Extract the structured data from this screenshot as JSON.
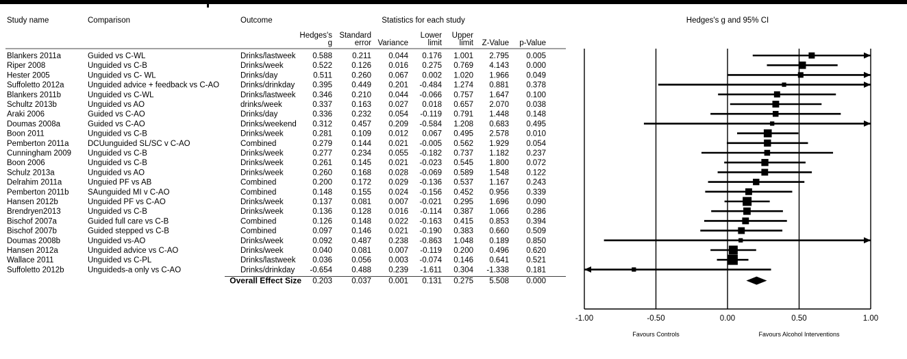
{
  "chart_data": {
    "type": "forest",
    "title": "Hedges's g and 95% CI",
    "group_header": "Statistics for each study",
    "columns": {
      "study": "Study name",
      "comparison": "Comparison",
      "outcome": "Outcome",
      "g": [
        "Hedges's",
        "g"
      ],
      "se": [
        "Standard",
        "error"
      ],
      "var": [
        "",
        "Variance"
      ],
      "lower": [
        "Lower",
        "limit"
      ],
      "upper": [
        "Upper",
        "limit"
      ],
      "z": [
        "",
        "Z-Value"
      ],
      "p": [
        "",
        "p-Value"
      ]
    },
    "studies": [
      {
        "study": "Blankers 2011a",
        "comparison": "Guided vs C-WL",
        "outcome": "Drinks/lastweek",
        "g": "0.588",
        "se": "0.211",
        "var": "0.044",
        "lower": "0.176",
        "upper": "1.001",
        "z": "2.795",
        "p": "0.005",
        "weight": 0.55
      },
      {
        "study": "Riper 2008",
        "comparison": "Unguided vs C-B",
        "outcome": "Drinks/week",
        "g": "0.522",
        "se": "0.126",
        "var": "0.016",
        "lower": "0.275",
        "upper": "0.769",
        "z": "4.143",
        "p": "0.000",
        "weight": 0.75
      },
      {
        "study": "Hester 2005",
        "comparison": "Unguided vs C- WL",
        "outcome": "Drinks/day",
        "g": "0.511",
        "se": "0.260",
        "var": "0.067",
        "lower": "0.002",
        "upper": "1.020",
        "z": "1.966",
        "p": "0.049",
        "weight": 0.45
      },
      {
        "study": "Suffoletto 2012a",
        "comparison": "Unguided advice + feedback vs C-AO",
        "outcome": "Drinks/drinkday",
        "g": "0.395",
        "se": "0.449",
        "var": "0.201",
        "lower": "-0.484",
        "upper": "1.274",
        "z": "0.881",
        "p": "0.378",
        "weight": 0.25
      },
      {
        "study": "Blankers 2011b",
        "comparison": "Unguided vs C-WL",
        "outcome": "Drinks/lastweek",
        "g": "0.346",
        "se": "0.210",
        "var": "0.044",
        "lower": "-0.066",
        "upper": "0.757",
        "z": "1.647",
        "p": "0.100",
        "weight": 0.55
      },
      {
        "study": "Schultz 2013b",
        "comparison": "Unguided vs AO",
        "outcome": "drinks/week",
        "g": "0.337",
        "se": "0.163",
        "var": "0.027",
        "lower": "0.018",
        "upper": "0.657",
        "z": "2.070",
        "p": "0.038",
        "weight": 0.65
      },
      {
        "study": "Araki 2006",
        "comparison": "Guided vs C-AO",
        "outcome": "Drinks/day",
        "g": "0.336",
        "se": "0.232",
        "var": "0.054",
        "lower": "-0.119",
        "upper": "0.791",
        "z": "1.448",
        "p": "0.148",
        "weight": 0.5
      },
      {
        "study": "Doumas 2008a",
        "comparison": "Guided vs C-AO",
        "outcome": "Drinks/weekend",
        "g": "0.312",
        "se": "0.457",
        "var": "0.209",
        "lower": "-0.584",
        "upper": "1.208",
        "z": "0.683",
        "p": "0.495",
        "weight": 0.25
      },
      {
        "study": "Boon 2011",
        "comparison": "Unguided vs C-B",
        "outcome": "Drinks/week",
        "g": "0.281",
        "se": "0.109",
        "var": "0.012",
        "lower": "0.067",
        "upper": "0.495",
        "z": "2.578",
        "p": "0.010",
        "weight": 0.85
      },
      {
        "study": "Pemberton 2011a",
        "comparison": "DCUunguided SL/SC v C-AO",
        "outcome": "Combined",
        "g": "0.279",
        "se": "0.144",
        "var": "0.021",
        "lower": "-0.005",
        "upper": "0.562",
        "z": "1.929",
        "p": "0.054",
        "weight": 0.7
      },
      {
        "study": "Cunningham 2009",
        "comparison": "Unguided vs C-B",
        "outcome": "Drinks/week",
        "g": "0.277",
        "se": "0.234",
        "var": "0.055",
        "lower": "-0.182",
        "upper": "0.737",
        "z": "1.182",
        "p": "0.237",
        "weight": 0.5
      },
      {
        "study": "Boon 2006",
        "comparison": "Unguided vs C-B",
        "outcome": "Drinks/week",
        "g": "0.261",
        "se": "0.145",
        "var": "0.021",
        "lower": "-0.023",
        "upper": "0.545",
        "z": "1.800",
        "p": "0.072",
        "weight": 0.7
      },
      {
        "study": "Schulz 2013a",
        "comparison": "Unguided vs AO",
        "outcome": "Drinks/week",
        "g": "0.260",
        "se": "0.168",
        "var": "0.028",
        "lower": "-0.069",
        "upper": "0.589",
        "z": "1.548",
        "p": "0.122",
        "weight": 0.65
      },
      {
        "study": "Delrahim 2011a",
        "comparison": "Unguied PF vs AB",
        "outcome": "Combined",
        "g": "0.200",
        "se": "0.172",
        "var": "0.029",
        "lower": "-0.136",
        "upper": "0.537",
        "z": "1.167",
        "p": "0.243",
        "weight": 0.6
      },
      {
        "study": "Pemberton 2011b",
        "comparison": "SAunguided MI v C-AO",
        "outcome": "Combined",
        "g": "0.148",
        "se": "0.155",
        "var": "0.024",
        "lower": "-0.156",
        "upper": "0.452",
        "z": "0.956",
        "p": "0.339",
        "weight": 0.65
      },
      {
        "study": "Hansen 2012b",
        "comparison": "Unguided PF vs C-AO",
        "outcome": "Drinks/week",
        "g": "0.137",
        "se": "0.081",
        "var": "0.007",
        "lower": "-0.021",
        "upper": "0.295",
        "z": "1.696",
        "p": "0.090",
        "weight": 1.0
      },
      {
        "study": "Brendryen2013",
        "comparison": "Unguided vs C-B",
        "outcome": "Drinks/week",
        "g": "0.136",
        "se": "0.128",
        "var": "0.016",
        "lower": "-0.114",
        "upper": "0.387",
        "z": "1.066",
        "p": "0.286",
        "weight": 0.75
      },
      {
        "study": "Bischof 2007a",
        "comparison": "Guided full care vs C-B",
        "outcome": "Combined",
        "g": "0.126",
        "se": "0.148",
        "var": "0.022",
        "lower": "-0.163",
        "upper": "0.415",
        "z": "0.853",
        "p": "0.394",
        "weight": 0.65
      },
      {
        "study": "Bischof 2007b",
        "comparison": "Guided stepped vs C-B",
        "outcome": "Combined",
        "g": "0.097",
        "se": "0.146",
        "var": "0.021",
        "lower": "-0.190",
        "upper": "0.383",
        "z": "0.660",
        "p": "0.509",
        "weight": 0.65
      },
      {
        "study": "Doumas 2008b",
        "comparison": "Unguided vs-AO",
        "outcome": "Drinks/week",
        "g": "0.092",
        "se": "0.487",
        "var": "0.238",
        "lower": "-0.863",
        "upper": "1.048",
        "z": "0.189",
        "p": "0.850",
        "weight": 0.25
      },
      {
        "study": "Hansen 2012a",
        "comparison": "Unguided advice vs C-AO",
        "outcome": "Drinks/week",
        "g": "0.040",
        "se": "0.081",
        "var": "0.007",
        "lower": "-0.119",
        "upper": "0.200",
        "z": "0.496",
        "p": "0.620",
        "weight": 1.0
      },
      {
        "study": "Wallace 2011",
        "comparison": "Unguided vs C-PL",
        "outcome": "Drinks/lastweek",
        "g": "0.036",
        "se": "0.056",
        "var": "0.003",
        "lower": "-0.074",
        "upper": "0.146",
        "z": "0.641",
        "p": "0.521",
        "weight": 1.2
      },
      {
        "study": "Suffoletto 2012b",
        "comparison": "Unguideds-a only vs C-AO",
        "outcome": "Drinks/drinkday",
        "g": "-0.654",
        "se": "0.488",
        "var": "0.239",
        "lower": "-1.611",
        "upper": "0.304",
        "z": "-1.338",
        "p": "0.181",
        "weight": 0.25
      }
    ],
    "overall": {
      "label": "Overall Effect Size",
      "g": "0.203",
      "se": "0.037",
      "var": "0.001",
      "lower": "0.131",
      "upper": "0.275",
      "z": "5.508",
      "p": "0.000"
    },
    "x_ticks": [
      "-1.00",
      "-0.50",
      "0.00",
      "0.50",
      "1.00"
    ],
    "xlim": [
      -1,
      1
    ],
    "favours_left": "Favours Controls",
    "favours_right": "Favours Alcohol Interventions"
  }
}
